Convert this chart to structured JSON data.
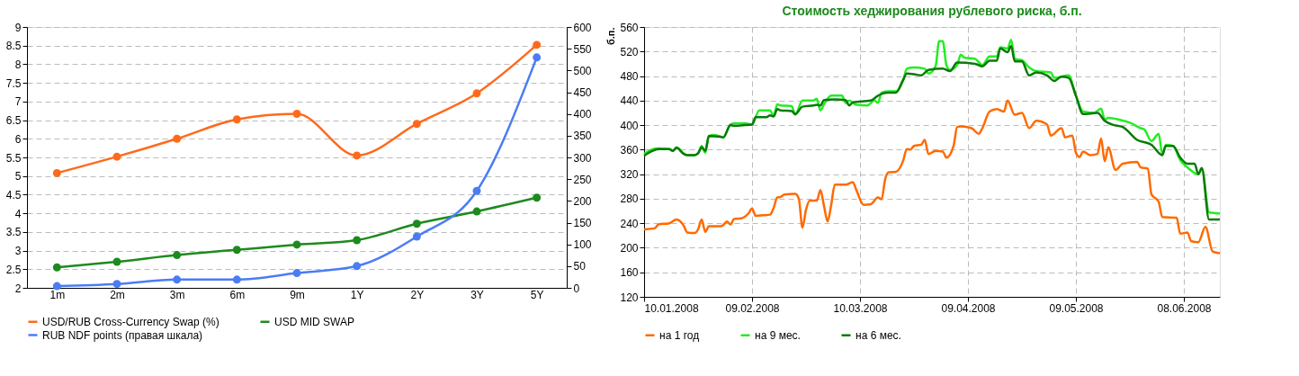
{
  "chart_data": [
    {
      "type": "line",
      "categories": [
        "1m",
        "2m",
        "3m",
        "6m",
        "9m",
        "1Y",
        "2Y",
        "3Y",
        "5Y"
      ],
      "series": [
        {
          "name": "USD/RUB Cross-Currency Swap (%)",
          "color": "#ff6a1a",
          "values": [
            5.08,
            5.52,
            6.0,
            6.52,
            6.67,
            5.55,
            6.4,
            7.22,
            8.52
          ]
        },
        {
          "name": "USD MID SWAP",
          "color": "#1e8a1e",
          "values": [
            2.55,
            2.7,
            2.88,
            3.02,
            3.16,
            3.28,
            3.72,
            4.05,
            4.42
          ]
        },
        {
          "name": "RUB NDF points (правая шкала)",
          "color": "#4a7cf5",
          "axis": "y2",
          "values": [
            4,
            9,
            19,
            19,
            34,
            50,
            118,
            223,
            530
          ]
        }
      ],
      "ylim": [
        2,
        9
      ],
      "yticks": [
        2,
        2.5,
        3,
        3.5,
        4,
        4.5,
        5,
        5.5,
        6,
        6.5,
        7,
        7.5,
        8,
        8.5,
        9
      ],
      "y2lim": [
        0,
        600
      ],
      "y2ticks": [
        0,
        50,
        100,
        150,
        200,
        250,
        300,
        350,
        400,
        450,
        500,
        550,
        600
      ],
      "grid": "y",
      "legend": "bottom",
      "marker": "circle",
      "line_style": "solid"
    },
    {
      "type": "line",
      "title": "Стоимость хеджирования рублевого риска, б.п.",
      "ylabel": "б.п.",
      "series": [
        {
          "name": "на 1 год",
          "color": "#ff6a00",
          "x": [
            "2008-01-10",
            "2008-01-13",
            "2008-01-14",
            "2008-01-17",
            "2008-01-19",
            "2008-01-21",
            "2008-01-22",
            "2008-01-24",
            "2008-01-25",
            "2008-01-26",
            "2008-01-27",
            "2008-01-28",
            "2008-01-31",
            "2008-02-01",
            "2008-02-02",
            "2008-02-03",
            "2008-02-04",
            "2008-02-06",
            "2008-02-08",
            "2008-02-09",
            "2008-02-10",
            "2008-02-12",
            "2008-02-14",
            "2008-02-15",
            "2008-02-16",
            "2008-02-17",
            "2008-02-18",
            "2008-02-21",
            "2008-02-22",
            "2008-02-23",
            "2008-02-24",
            "2008-02-25",
            "2008-02-27",
            "2008-02-28",
            "2008-02-29",
            "2008-03-01",
            "2008-03-02",
            "2008-03-03",
            "2008-03-06",
            "2008-03-08",
            "2008-03-09",
            "2008-03-11",
            "2008-03-13",
            "2008-03-15",
            "2008-03-16",
            "2008-03-17",
            "2008-03-18",
            "2008-03-20",
            "2008-03-22",
            "2008-03-23",
            "2008-03-24",
            "2008-03-25",
            "2008-03-27",
            "2008-03-28",
            "2008-03-29",
            "2008-03-31",
            "2008-04-02",
            "2008-04-03",
            "2008-04-05",
            "2008-04-06",
            "2008-04-07",
            "2008-04-10",
            "2008-04-12",
            "2008-04-13",
            "2008-04-15",
            "2008-04-17",
            "2008-04-19",
            "2008-04-20",
            "2008-04-22",
            "2008-04-24",
            "2008-04-26",
            "2008-04-28",
            "2008-05-01",
            "2008-05-02",
            "2008-05-05",
            "2008-05-06",
            "2008-05-08",
            "2008-05-09",
            "2008-05-10",
            "2008-05-11",
            "2008-05-13",
            "2008-05-15",
            "2008-05-16",
            "2008-05-17",
            "2008-05-18",
            "2008-05-20",
            "2008-05-22",
            "2008-05-26",
            "2008-05-27",
            "2008-05-29",
            "2008-05-30",
            "2008-06-01",
            "2008-06-02",
            "2008-06-06",
            "2008-06-07",
            "2008-06-09",
            "2008-06-10",
            "2008-06-12",
            "2008-06-14",
            "2008-06-16",
            "2008-06-18"
          ],
          "values": [
            230,
            232,
            238,
            240,
            246,
            236,
            225,
            224,
            230,
            246,
            226,
            235,
            235,
            237,
            243,
            238,
            247,
            248,
            256,
            264,
            252,
            253,
            254,
            265,
            282,
            283,
            287,
            288,
            280,
            233,
            262,
            277,
            277,
            294,
            268,
            243,
            270,
            303,
            303,
            307,
            294,
            270,
            271,
            282,
            279,
            312,
            323,
            324,
            342,
            361,
            360,
            366,
            368,
            376,
            353,
            358,
            357,
            347,
            366,
            397,
            398,
            395,
            386,
            395,
            422,
            426,
            422,
            440,
            417,
            420,
            395,
            407,
            401,
            383,
            395,
            380,
            383,
            355,
            348,
            357,
            351,
            353,
            378,
            341,
            364,
            327,
            337,
            340,
            331,
            329,
            287,
            275,
            250,
            249,
            223,
            225,
            211,
            209,
            234,
            194,
            191
          ]
        },
        {
          "name": "на 9 мес.",
          "color": "#22ee22",
          "x": [
            "2008-01-10",
            "2008-01-12",
            "2008-01-14",
            "2008-01-17",
            "2008-01-18",
            "2008-01-19",
            "2008-01-21",
            "2008-01-22",
            "2008-01-24",
            "2008-01-25",
            "2008-01-26",
            "2008-01-27",
            "2008-01-28",
            "2008-01-29",
            "2008-01-31",
            "2008-02-01",
            "2008-02-03",
            "2008-02-04",
            "2008-02-07",
            "2008-02-09",
            "2008-02-11",
            "2008-02-14",
            "2008-02-15",
            "2008-02-16",
            "2008-02-17",
            "2008-02-20",
            "2008-02-21",
            "2008-02-23",
            "2008-02-26",
            "2008-02-27",
            "2008-02-28",
            "2008-02-29",
            "2008-03-02",
            "2008-03-05",
            "2008-03-06",
            "2008-03-07",
            "2008-03-09",
            "2008-03-12",
            "2008-03-14",
            "2008-03-15",
            "2008-03-16",
            "2008-03-18",
            "2008-03-20",
            "2008-03-22",
            "2008-03-23",
            "2008-03-25",
            "2008-03-28",
            "2008-03-29",
            "2008-03-31",
            "2008-04-01",
            "2008-04-02",
            "2008-04-03",
            "2008-04-04",
            "2008-04-06",
            "2008-04-07",
            "2008-04-08",
            "2008-04-11",
            "2008-04-13",
            "2008-04-15",
            "2008-04-17",
            "2008-04-18",
            "2008-04-20",
            "2008-04-21",
            "2008-04-22",
            "2008-04-24",
            "2008-04-26",
            "2008-04-28",
            "2008-05-02",
            "2008-05-03",
            "2008-05-07",
            "2008-05-09",
            "2008-05-11",
            "2008-05-14",
            "2008-05-16",
            "2008-05-17",
            "2008-05-18",
            "2008-05-21",
            "2008-05-24",
            "2008-05-27",
            "2008-05-28",
            "2008-05-30",
            "2008-06-01",
            "2008-06-02",
            "2008-06-03",
            "2008-06-05",
            "2008-06-07",
            "2008-06-09",
            "2008-06-12",
            "2008-06-13",
            "2008-06-15",
            "2008-06-18"
          ],
          "values": [
            353,
            360,
            362,
            361,
            358,
            364,
            354,
            351,
            351,
            354,
            366,
            355,
            382,
            384,
            382,
            380,
            401,
            403,
            403,
            401,
            424,
            424,
            415,
            434,
            432,
            431,
            417,
            440,
            440,
            443,
            424,
            434,
            448,
            448,
            436,
            440,
            433,
            432,
            440,
            436,
            453,
            455,
            455,
            473,
            492,
            494,
            492,
            484,
            496,
            537,
            537,
            498,
            490,
            498,
            515,
            510,
            508,
            498,
            512,
            512,
            527,
            525,
            539,
            508,
            506,
            494,
            488,
            486,
            477,
            481,
            448,
            422,
            420,
            427,
            409,
            412,
            409,
            404,
            395,
            393,
            374,
            386,
            353,
            368,
            366,
            343,
            331,
            320,
            328,
            258,
            256
          ]
        },
        {
          "name": "на 6 мес.",
          "color": "#0a7a0a",
          "x": [
            "2008-01-10",
            "2008-01-12",
            "2008-01-14",
            "2008-01-17",
            "2008-01-18",
            "2008-01-19",
            "2008-01-21",
            "2008-01-22",
            "2008-01-24",
            "2008-01-25",
            "2008-01-26",
            "2008-01-27",
            "2008-01-28",
            "2008-01-31",
            "2008-02-01",
            "2008-02-03",
            "2008-02-04",
            "2008-02-07",
            "2008-02-09",
            "2008-02-10",
            "2008-02-13",
            "2008-02-14",
            "2008-02-15",
            "2008-02-16",
            "2008-02-17",
            "2008-02-20",
            "2008-02-21",
            "2008-02-23",
            "2008-02-26",
            "2008-02-27",
            "2008-02-28",
            "2008-02-29",
            "2008-03-03",
            "2008-03-06",
            "2008-03-07",
            "2008-03-08",
            "2008-03-13",
            "2008-03-15",
            "2008-03-16",
            "2008-03-18",
            "2008-03-20",
            "2008-03-22",
            "2008-03-23",
            "2008-03-25",
            "2008-03-27",
            "2008-03-29",
            "2008-04-02",
            "2008-04-04",
            "2008-04-06",
            "2008-04-11",
            "2008-04-13",
            "2008-04-15",
            "2008-04-17",
            "2008-04-18",
            "2008-04-20",
            "2008-04-21",
            "2008-04-22",
            "2008-04-24",
            "2008-04-26",
            "2008-04-28",
            "2008-05-01",
            "2008-05-03",
            "2008-05-05",
            "2008-05-07",
            "2008-05-09",
            "2008-05-11",
            "2008-05-15",
            "2008-05-17",
            "2008-05-19",
            "2008-05-22",
            "2008-05-26",
            "2008-05-30",
            "2008-06-02",
            "2008-06-03",
            "2008-06-05",
            "2008-06-07",
            "2008-06-09",
            "2008-06-11",
            "2008-06-12",
            "2008-06-13",
            "2008-06-15",
            "2008-06-18"
          ],
          "values": [
            350,
            357,
            361,
            361,
            358,
            363,
            353,
            351,
            351,
            354,
            364,
            358,
            382,
            381,
            380,
            400,
            399,
            400,
            401,
            413,
            413,
            416,
            414,
            426,
            424,
            423,
            418,
            430,
            432,
            433,
            432,
            441,
            442,
            441,
            432,
            437,
            440,
            448,
            451,
            453,
            453,
            474,
            484,
            483,
            481,
            490,
            492,
            488,
            502,
            500,
            496,
            505,
            505,
            525,
            519,
            529,
            504,
            504,
            481,
            486,
            481,
            472,
            479,
            477,
            448,
            418,
            420,
            407,
            401,
            397,
            376,
            368,
            351,
            366,
            366,
            347,
            337,
            337,
            320,
            330,
            246,
            246
          ]
        }
      ],
      "xlim": [
        "2008-01-10",
        "2008-06-18"
      ],
      "xticks": [
        {
          "value": "2008-01-10",
          "label": "10.01.2008"
        },
        {
          "value": "2008-02-09",
          "label": "09.02.2008"
        },
        {
          "value": "2008-03-10",
          "label": "10.03.2008"
        },
        {
          "value": "2008-04-09",
          "label": "09.04.2008"
        },
        {
          "value": "2008-05-09",
          "label": "09.05.2008"
        },
        {
          "value": "2008-06-08",
          "label": "08.06.2008"
        }
      ],
      "ylim": [
        120,
        560
      ],
      "yticks": [
        120,
        160,
        200,
        240,
        280,
        320,
        360,
        400,
        440,
        480,
        520,
        560
      ],
      "grid": true,
      "legend": "bottom",
      "marker": "none",
      "line_style": "solid"
    }
  ]
}
